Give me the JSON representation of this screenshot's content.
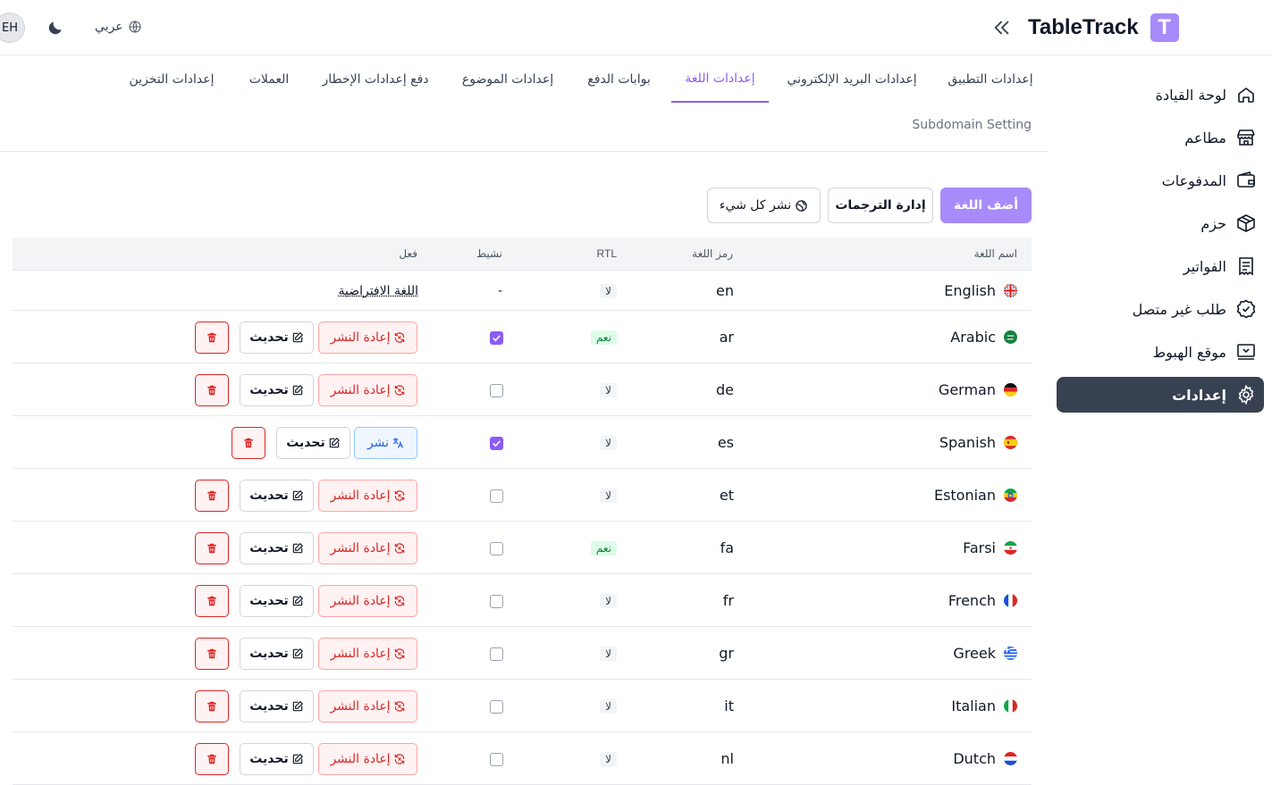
{
  "header": {
    "avatar_initials": "EH",
    "language_switch": "عربي",
    "app_name": "TableTrack",
    "logo_letter": "T"
  },
  "sidebar": {
    "items": [
      {
        "label": "لوحة القيادة",
        "icon": "home-icon",
        "active": false
      },
      {
        "label": "مطاعم",
        "icon": "store-icon",
        "active": false
      },
      {
        "label": "المدفوعات",
        "icon": "wallet-icon",
        "active": false
      },
      {
        "label": "حزم",
        "icon": "package-icon",
        "active": false
      },
      {
        "label": "الفواتير",
        "icon": "invoice-icon",
        "active": false
      },
      {
        "label": "طلب غير متصل",
        "icon": "badge-check-icon",
        "active": false
      },
      {
        "label": "موقع الهبوط",
        "icon": "monitor-icon",
        "active": false
      },
      {
        "label": "إعدادات",
        "icon": "gear-icon",
        "active": true
      }
    ]
  },
  "tabs": {
    "items": [
      {
        "label": "إعدادات التطبيق",
        "active": false
      },
      {
        "label": "إعدادات البريد الإلكتروني",
        "active": false
      },
      {
        "label": "إعدادات اللغة",
        "active": true
      },
      {
        "label": "بوابات الدفع",
        "active": false
      },
      {
        "label": "إعدادات الموضوع",
        "active": false
      },
      {
        "label": "دفع إعدادات الإخطار",
        "active": false
      },
      {
        "label": "العملات",
        "active": false
      },
      {
        "label": "إعدادات التخزين",
        "active": false
      }
    ],
    "second_row": "Subdomain Setting"
  },
  "actions": {
    "add_language": "أضف اللغة",
    "manage_translations": "إدارة الترجمات",
    "publish_all": "نشر كل شيء"
  },
  "table": {
    "headers": {
      "name": "اسم اللغة",
      "code": "رمز اللغة",
      "rtl": "RTL",
      "active": "نشيط",
      "action": "فعل"
    },
    "buttons": {
      "republish": "إعادة النشر",
      "publish": "نشر",
      "update": "تحديث"
    },
    "default_label": "اللغة الافتراضية",
    "dash": "-",
    "rows": [
      {
        "name": "English",
        "flag": "uk",
        "code": "en",
        "rtl": "لا",
        "rtl_yes": false,
        "active": null,
        "actions": "default"
      },
      {
        "name": "Arabic",
        "flag": "sa",
        "code": "ar",
        "rtl": "نعم",
        "rtl_yes": true,
        "active": true,
        "actions": "republish"
      },
      {
        "name": "German",
        "flag": "de",
        "code": "de",
        "rtl": "لا",
        "rtl_yes": false,
        "active": false,
        "actions": "republish"
      },
      {
        "name": "Spanish",
        "flag": "es",
        "code": "es",
        "rtl": "لا",
        "rtl_yes": false,
        "active": true,
        "actions": "publish"
      },
      {
        "name": "Estonian",
        "flag": "et",
        "code": "et",
        "rtl": "لا",
        "rtl_yes": false,
        "active": false,
        "actions": "republish"
      },
      {
        "name": "Farsi",
        "flag": "ir",
        "code": "fa",
        "rtl": "نعم",
        "rtl_yes": true,
        "active": false,
        "actions": "republish"
      },
      {
        "name": "French",
        "flag": "fr",
        "code": "fr",
        "rtl": "لا",
        "rtl_yes": false,
        "active": false,
        "actions": "republish"
      },
      {
        "name": "Greek",
        "flag": "gr",
        "code": "gr",
        "rtl": "لا",
        "rtl_yes": false,
        "active": false,
        "actions": "republish"
      },
      {
        "name": "Italian",
        "flag": "it",
        "code": "it",
        "rtl": "لا",
        "rtl_yes": false,
        "active": false,
        "actions": "republish"
      },
      {
        "name": "Dutch",
        "flag": "nl",
        "code": "nl",
        "rtl": "لا",
        "rtl_yes": false,
        "active": false,
        "actions": "republish"
      }
    ]
  },
  "colors": {
    "accent": "#8b5cf6",
    "primary_button": "#a78bfa",
    "sidebar_active": "#374151",
    "danger": "#dc2626"
  }
}
